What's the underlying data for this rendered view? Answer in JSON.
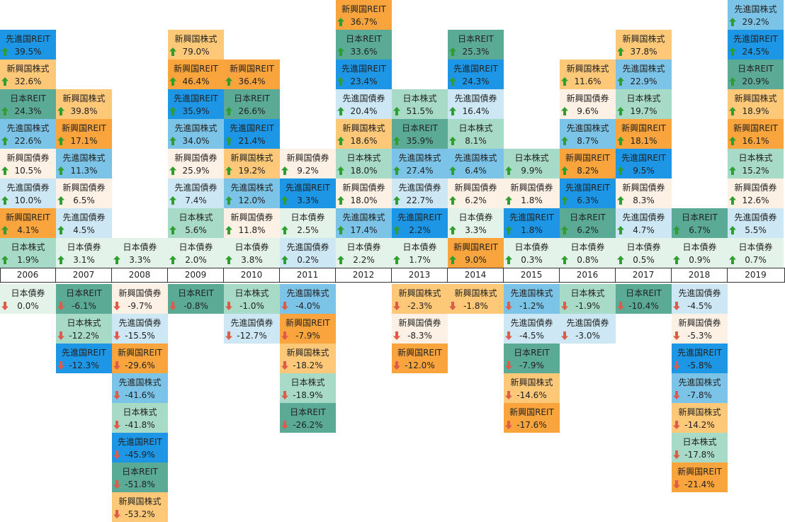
{
  "categories": {
    "新興国REIT": "#f9a43c",
    "先進国REIT": "#1e96e6",
    "新興国株式": "#fdc878",
    "日本REIT": "#5aaa96",
    "先進国株式": "#7cc3e8",
    "日本株式": "#a8dac8",
    "新興国債券": "#fdf0e4",
    "先進国債券": "#cde8f4",
    "日本債券": "#e4f3ea"
  },
  "arrow_colors": {
    "up": "#2e9e2e",
    "down": "#e05a4a"
  },
  "chart_data": {
    "type": "table",
    "years": [
      "2006",
      "2007",
      "2008",
      "2009",
      "2010",
      "2011",
      "2012",
      "2013",
      "2014",
      "2015",
      "2016",
      "2017",
      "2018",
      "2019"
    ],
    "positive": [
      [
        {
          "name": "先進国REIT",
          "value": "39.5%"
        },
        {
          "name": "新興国株式",
          "value": "32.6%"
        },
        {
          "name": "日本REIT",
          "value": "24.3%"
        },
        {
          "name": "先進国株式",
          "value": "22.6%"
        },
        {
          "name": "新興国債券",
          "value": "10.5%"
        },
        {
          "name": "先進国債券",
          "value": "10.0%"
        },
        {
          "name": "新興国REIT",
          "value": "4.1%"
        },
        {
          "name": "日本株式",
          "value": "1.9%"
        }
      ],
      [
        {
          "name": "新興国株式",
          "value": "39.8%"
        },
        {
          "name": "新興国REIT",
          "value": "17.1%"
        },
        {
          "name": "先進国株式",
          "value": "11.3%"
        },
        {
          "name": "新興国債券",
          "value": "6.5%"
        },
        {
          "name": "先進国債券",
          "value": "4.5%"
        },
        {
          "name": "日本債券",
          "value": "3.1%"
        }
      ],
      [
        {
          "name": "日本債券",
          "value": "3.3%"
        }
      ],
      [
        {
          "name": "新興国株式",
          "value": "79.0%"
        },
        {
          "name": "新興国REIT",
          "value": "46.4%"
        },
        {
          "name": "先進国REIT",
          "value": "35.9%"
        },
        {
          "name": "先進国株式",
          "value": "34.0%"
        },
        {
          "name": "新興国債券",
          "value": "25.9%"
        },
        {
          "name": "先進国債券",
          "value": "7.4%"
        },
        {
          "name": "日本株式",
          "value": "5.6%"
        },
        {
          "name": "日本債券",
          "value": "2.0%"
        }
      ],
      [
        {
          "name": "新興国REIT",
          "value": "36.4%"
        },
        {
          "name": "日本REIT",
          "value": "26.6%"
        },
        {
          "name": "先進国REIT",
          "value": "21.4%"
        },
        {
          "name": "新興国株式",
          "value": "19.2%"
        },
        {
          "name": "先進国株式",
          "value": "12.0%"
        },
        {
          "name": "新興国債券",
          "value": "11.8%"
        },
        {
          "name": "日本債券",
          "value": "3.8%"
        }
      ],
      [
        {
          "name": "新興国債券",
          "value": "9.2%"
        },
        {
          "name": "先進国REIT",
          "value": "3.3%"
        },
        {
          "name": "日本債券",
          "value": "2.5%"
        },
        {
          "name": "先進国債券",
          "value": "0.2%"
        }
      ],
      [
        {
          "name": "新興国REIT",
          "value": "36.7%"
        },
        {
          "name": "日本REIT",
          "value": "33.6%"
        },
        {
          "name": "先進国REIT",
          "value": "23.4%"
        },
        {
          "name": "先進国債券",
          "value": "20.4%"
        },
        {
          "name": "新興国株式",
          "value": "18.6%"
        },
        {
          "name": "日本株式",
          "value": "18.0%"
        },
        {
          "name": "新興国債券",
          "value": "18.0%"
        },
        {
          "name": "先進国株式",
          "value": "17.4%"
        },
        {
          "name": "日本債券",
          "value": "2.2%"
        }
      ],
      [
        {
          "name": "日本株式",
          "value": "51.5%"
        },
        {
          "name": "日本REIT",
          "value": "35.9%"
        },
        {
          "name": "先進国株式",
          "value": "27.4%"
        },
        {
          "name": "先進国債券",
          "value": "22.7%"
        },
        {
          "name": "先進国REIT",
          "value": "2.2%"
        },
        {
          "name": "日本債券",
          "value": "1.7%"
        }
      ],
      [
        {
          "name": "日本REIT",
          "value": "25.3%"
        },
        {
          "name": "先進国REIT",
          "value": "24.3%"
        },
        {
          "name": "先進国債券",
          "value": "16.4%"
        },
        {
          "name": "日本株式",
          "value": "8.1%"
        },
        {
          "name": "先進国株式",
          "value": "6.4%"
        },
        {
          "name": "新興国債券",
          "value": "6.2%"
        },
        {
          "name": "日本債券",
          "value": "3.3%"
        },
        {
          "name": "新興国REIT",
          "value": "9.0%"
        }
      ],
      [
        {
          "name": "日本株式",
          "value": "9.9%"
        },
        {
          "name": "新興国債券",
          "value": "1.8%"
        },
        {
          "name": "先進国REIT",
          "value": "1.8%"
        },
        {
          "name": "日本債券",
          "value": "0.3%"
        }
      ],
      [
        {
          "name": "新興国株式",
          "value": "11.6%"
        },
        {
          "name": "新興国債券",
          "value": "9.6%"
        },
        {
          "name": "先進国株式",
          "value": "8.7%"
        },
        {
          "name": "新興国REIT",
          "value": "8.2%"
        },
        {
          "name": "先進国REIT",
          "value": "6.3%"
        },
        {
          "name": "日本REIT",
          "value": "6.2%"
        },
        {
          "name": "日本債券",
          "value": "0.8%"
        }
      ],
      [
        {
          "name": "新興国株式",
          "value": "37.8%"
        },
        {
          "name": "先進国株式",
          "value": "22.9%"
        },
        {
          "name": "日本株式",
          "value": "19.7%"
        },
        {
          "name": "新興国REIT",
          "value": "18.1%"
        },
        {
          "name": "先進国REIT",
          "value": "9.5%"
        },
        {
          "name": "新興国債券",
          "value": "8.3%"
        },
        {
          "name": "先進国債券",
          "value": "4.7%"
        },
        {
          "name": "日本債券",
          "value": "0.5%"
        }
      ],
      [
        {
          "name": "日本REIT",
          "value": "6.7%"
        },
        {
          "name": "日本債券",
          "value": "0.9%"
        }
      ],
      [
        {
          "name": "先進国株式",
          "value": "29.2%"
        },
        {
          "name": "先進国REIT",
          "value": "24.5%"
        },
        {
          "name": "日本REIT",
          "value": "20.9%"
        },
        {
          "name": "新興国株式",
          "value": "18.9%"
        },
        {
          "name": "新興国REIT",
          "value": "16.1%"
        },
        {
          "name": "日本株式",
          "value": "15.2%"
        },
        {
          "name": "新興国債券",
          "value": "12.6%"
        },
        {
          "name": "先進国債券",
          "value": "5.5%"
        },
        {
          "name": "日本債券",
          "value": "0.7%"
        }
      ]
    ],
    "negative": [
      [
        {
          "name": "日本債券",
          "value": "0.0%"
        }
      ],
      [
        {
          "name": "日本REIT",
          "value": "-6.1%"
        },
        {
          "name": "日本株式",
          "value": "-12.2%"
        },
        {
          "name": "先進国REIT",
          "value": "-12.3%"
        }
      ],
      [
        {
          "name": "新興国債券",
          "value": "-9.7%"
        },
        {
          "name": "先進国債券",
          "value": "-15.5%"
        },
        {
          "name": "新興国REIT",
          "value": "-29.6%"
        },
        {
          "name": "先進国株式",
          "value": "-41.6%"
        },
        {
          "name": "日本株式",
          "value": "-41.8%"
        },
        {
          "name": "先進国REIT",
          "value": "-45.9%"
        },
        {
          "name": "日本REIT",
          "value": "-51.8%"
        },
        {
          "name": "新興国株式",
          "value": "-53.2%"
        }
      ],
      [
        {
          "name": "日本REIT",
          "value": "-0.8%"
        }
      ],
      [
        {
          "name": "日本株式",
          "value": "-1.0%"
        },
        {
          "name": "先進国債券",
          "value": "-12.7%"
        }
      ],
      [
        {
          "name": "先進国株式",
          "value": "-4.0%"
        },
        {
          "name": "新興国REIT",
          "value": "-7.9%"
        },
        {
          "name": "新興国株式",
          "value": "-18.2%"
        },
        {
          "name": "日本株式",
          "value": "-18.9%"
        },
        {
          "name": "日本REIT",
          "value": "-26.2%"
        }
      ],
      [],
      [
        {
          "name": "新興国株式",
          "value": "-2.3%"
        },
        {
          "name": "新興国債券",
          "value": "-8.3%"
        },
        {
          "name": "新興国REIT",
          "value": "-12.0%"
        }
      ],
      [
        {
          "name": "新興国株式",
          "value": "-1.8%"
        }
      ],
      [
        {
          "name": "先進国株式",
          "value": "-1.2%"
        },
        {
          "name": "先進国債券",
          "value": "-4.5%"
        },
        {
          "name": "日本REIT",
          "value": "-7.9%"
        },
        {
          "name": "新興国株式",
          "value": "-14.6%"
        },
        {
          "name": "新興国REIT",
          "value": "-17.6%"
        }
      ],
      [
        {
          "name": "日本株式",
          "value": "-1.9%"
        },
        {
          "name": "先進国債券",
          "value": "-3.0%"
        }
      ],
      [
        {
          "name": "日本REIT",
          "value": "-10.4%"
        }
      ],
      [
        {
          "name": "先進国債券",
          "value": "-4.5%"
        },
        {
          "name": "新興国債券",
          "value": "-5.3%"
        },
        {
          "name": "先進国REIT",
          "value": "-5.8%"
        },
        {
          "name": "先進国株式",
          "value": "-7.8%"
        },
        {
          "name": "新興国株式",
          "value": "-14.2%"
        },
        {
          "name": "日本株式",
          "value": "-17.8%"
        },
        {
          "name": "新興国REIT",
          "value": "-21.4%"
        }
      ],
      []
    ]
  }
}
